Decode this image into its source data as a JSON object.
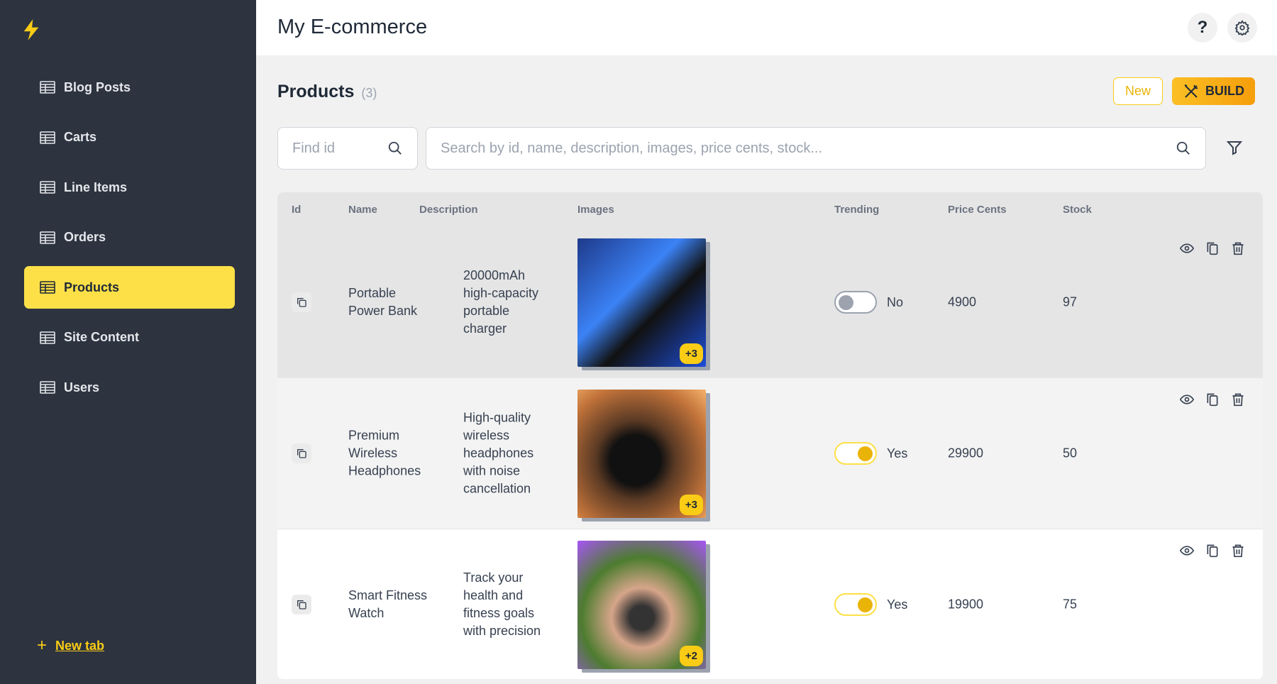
{
  "app": {
    "title": "My E-commerce"
  },
  "sidebar": {
    "items": [
      {
        "label": "Blog Posts"
      },
      {
        "label": "Carts"
      },
      {
        "label": "Line Items"
      },
      {
        "label": "Orders"
      },
      {
        "label": "Products",
        "active": true
      },
      {
        "label": "Site Content"
      },
      {
        "label": "Users"
      }
    ],
    "new_tab": "New tab"
  },
  "page": {
    "title": "Products",
    "count": "(3)",
    "new_label": "New",
    "build_label": "BUILD"
  },
  "search": {
    "find_id_placeholder": "Find id",
    "main_placeholder": "Search by id, name, description, images, price cents, stock..."
  },
  "table": {
    "columns": [
      "Id",
      "Name",
      "Description",
      "Images",
      "Trending",
      "Price Cents",
      "Stock"
    ],
    "rows": [
      {
        "name": "Portable Power Bank",
        "description": "20000mAh high-capacity portable charger",
        "images_more": "+3",
        "trending": false,
        "trending_label": "No",
        "price_cents": "4900",
        "stock": "97"
      },
      {
        "name": "Premium Wireless Headphones",
        "description": "High-quality wireless headphones with noise cancellation",
        "images_more": "+3",
        "trending": true,
        "trending_label": "Yes",
        "price_cents": "29900",
        "stock": "50"
      },
      {
        "name": "Smart Fitness Watch",
        "description": "Track your health and fitness goals with precision",
        "images_more": "+2",
        "trending": true,
        "trending_label": "Yes",
        "price_cents": "19900",
        "stock": "75"
      }
    ]
  },
  "colors": {
    "accent": "#fde047",
    "sidebar": "#2d3440",
    "build": "#fbbf24"
  }
}
